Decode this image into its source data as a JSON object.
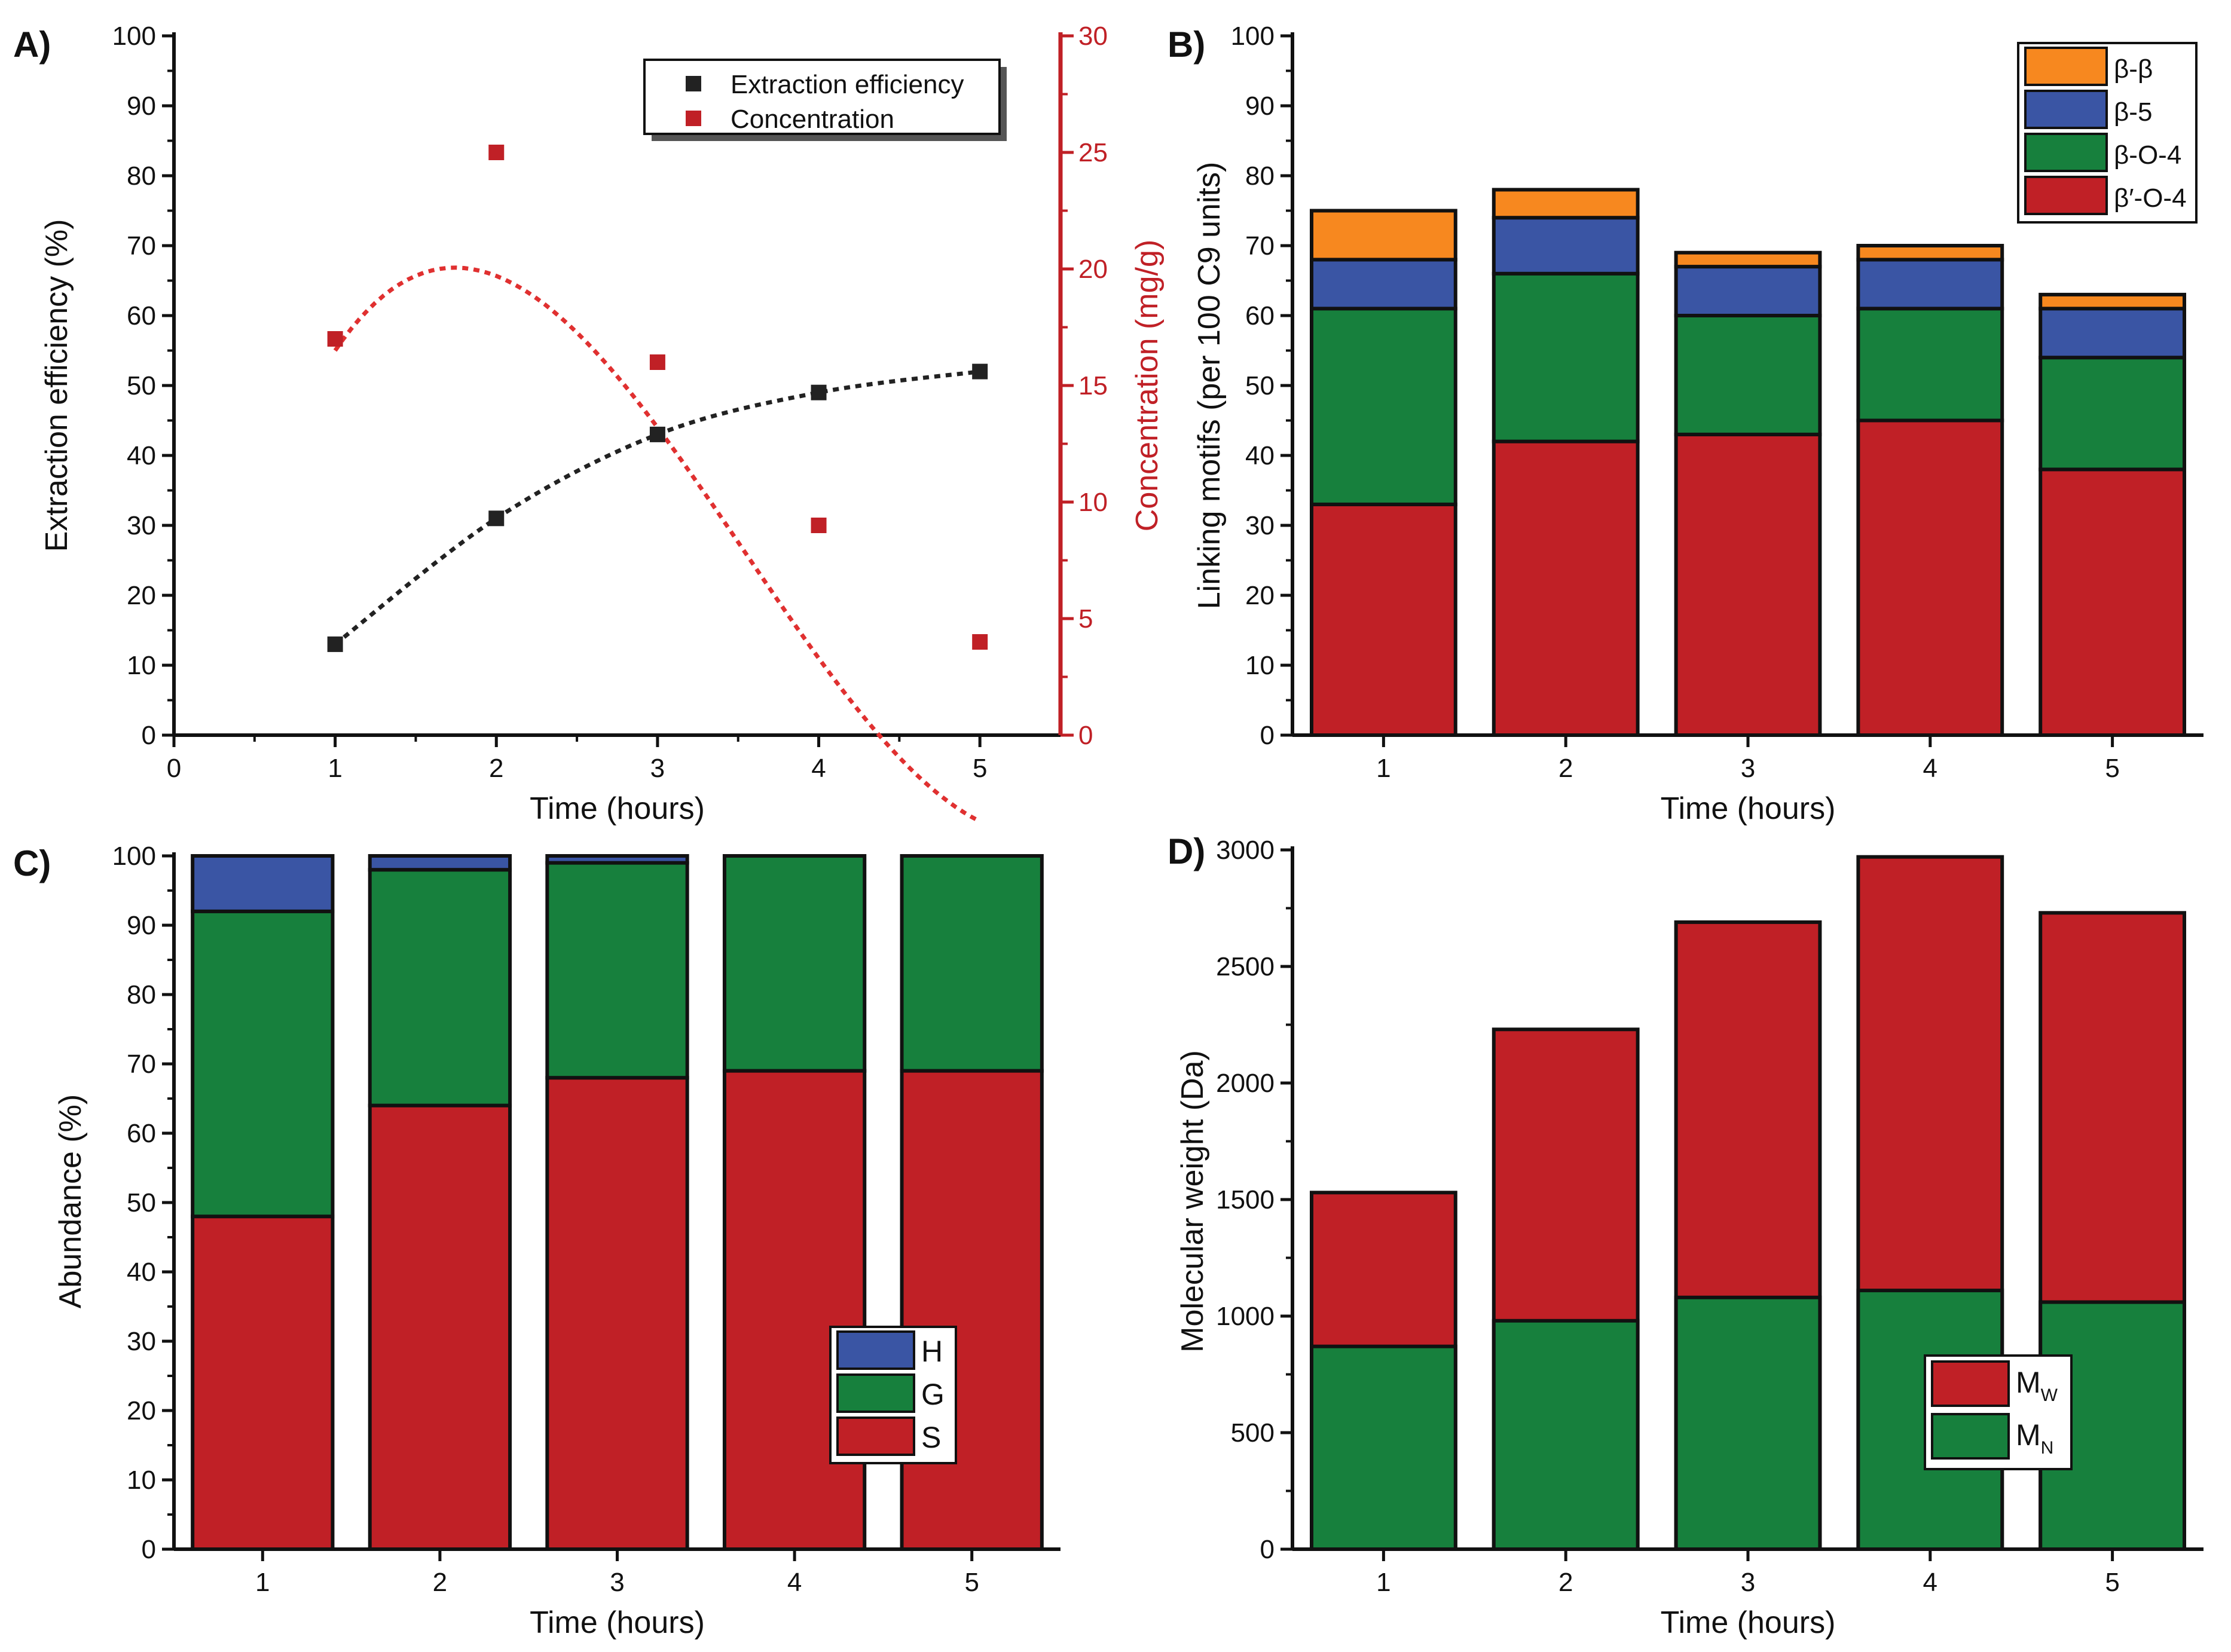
{
  "colors": {
    "black": "#111111",
    "red": "#c02026",
    "dashed_red": "#e03030",
    "green": "#17803d",
    "blue": "#3a55a4",
    "orange": "#f7881f"
  },
  "chart_data": [
    {
      "panel": "A)",
      "type": "line",
      "title": "",
      "xlabel": "Time (hours)",
      "ylabel": "Extraction efficiency (%)",
      "y2label": "Concentration (mg/g)",
      "xlim": [
        0,
        5.5
      ],
      "ylim": [
        0,
        100
      ],
      "y2lim": [
        0,
        30
      ],
      "x_ticks": [
        "0",
        "1",
        "2",
        "3",
        "4",
        "5"
      ],
      "y_ticks": [
        "0",
        "10",
        "20",
        "30",
        "40",
        "50",
        "60",
        "70",
        "80",
        "90",
        "100"
      ],
      "y2_ticks": [
        "0",
        "5",
        "10",
        "15",
        "20",
        "25",
        "30"
      ],
      "legend_position": "top-right",
      "series": [
        {
          "name": "Extraction efficiency",
          "axis": "left",
          "x": [
            1,
            2,
            3,
            4,
            5
          ],
          "values": [
            13,
            31,
            43,
            49,
            52
          ]
        },
        {
          "name": "Concentration",
          "axis": "right",
          "x": [
            1,
            2,
            3,
            4,
            5
          ],
          "values": [
            17,
            25,
            16,
            9,
            4
          ]
        }
      ]
    },
    {
      "panel": "B)",
      "type": "bar",
      "stacked": true,
      "title": "",
      "xlabel": "Time (hours)",
      "ylabel": "Linking motifs (per 100 C9 units)",
      "ylim": [
        0,
        100
      ],
      "categories": [
        "1",
        "2",
        "3",
        "4",
        "5"
      ],
      "y_ticks": [
        "0",
        "10",
        "20",
        "30",
        "40",
        "50",
        "60",
        "70",
        "80",
        "90",
        "100"
      ],
      "legend_position": "top-right",
      "series": [
        {
          "name": "β′-O-4",
          "values": [
            33,
            42,
            43,
            45,
            38
          ]
        },
        {
          "name": "β-O-4",
          "values": [
            28,
            24,
            17,
            16,
            16
          ]
        },
        {
          "name": "β-5",
          "values": [
            7,
            8,
            7,
            7,
            7
          ]
        },
        {
          "name": "β-β",
          "values": [
            7,
            4,
            2,
            2,
            2
          ]
        }
      ]
    },
    {
      "panel": "C)",
      "type": "bar",
      "stacked": true,
      "title": "",
      "xlabel": "Time (hours)",
      "ylabel": "Abundance (%)",
      "ylim": [
        0,
        100
      ],
      "categories": [
        "1",
        "2",
        "3",
        "4",
        "5"
      ],
      "y_ticks": [
        "0",
        "10",
        "20",
        "30",
        "40",
        "50",
        "60",
        "70",
        "80",
        "90",
        "100"
      ],
      "legend_position": "bottom-right",
      "series": [
        {
          "name": "S",
          "values": [
            48,
            64,
            68,
            69,
            69
          ]
        },
        {
          "name": "G",
          "values": [
            44,
            34,
            31,
            31,
            31
          ]
        },
        {
          "name": "H",
          "values": [
            8,
            2,
            1,
            0,
            0
          ]
        }
      ]
    },
    {
      "panel": "D)",
      "type": "bar",
      "stacked": false,
      "overlaid": true,
      "title": "",
      "xlabel": "Time (hours)",
      "ylabel": "Molecular weight (Da)",
      "ylim": [
        0,
        3000
      ],
      "categories": [
        "1",
        "2",
        "3",
        "4",
        "5"
      ],
      "y_ticks": [
        "0",
        "500",
        "1000",
        "1500",
        "2000",
        "2500",
        "3000"
      ],
      "legend_position": "bottom-right",
      "series": [
        {
          "name": "M",
          "subscript": "W",
          "values": [
            1530,
            2230,
            2690,
            2970,
            2730
          ]
        },
        {
          "name": "M",
          "subscript": "N",
          "values": [
            870,
            980,
            1080,
            1110,
            1060
          ]
        }
      ]
    }
  ]
}
